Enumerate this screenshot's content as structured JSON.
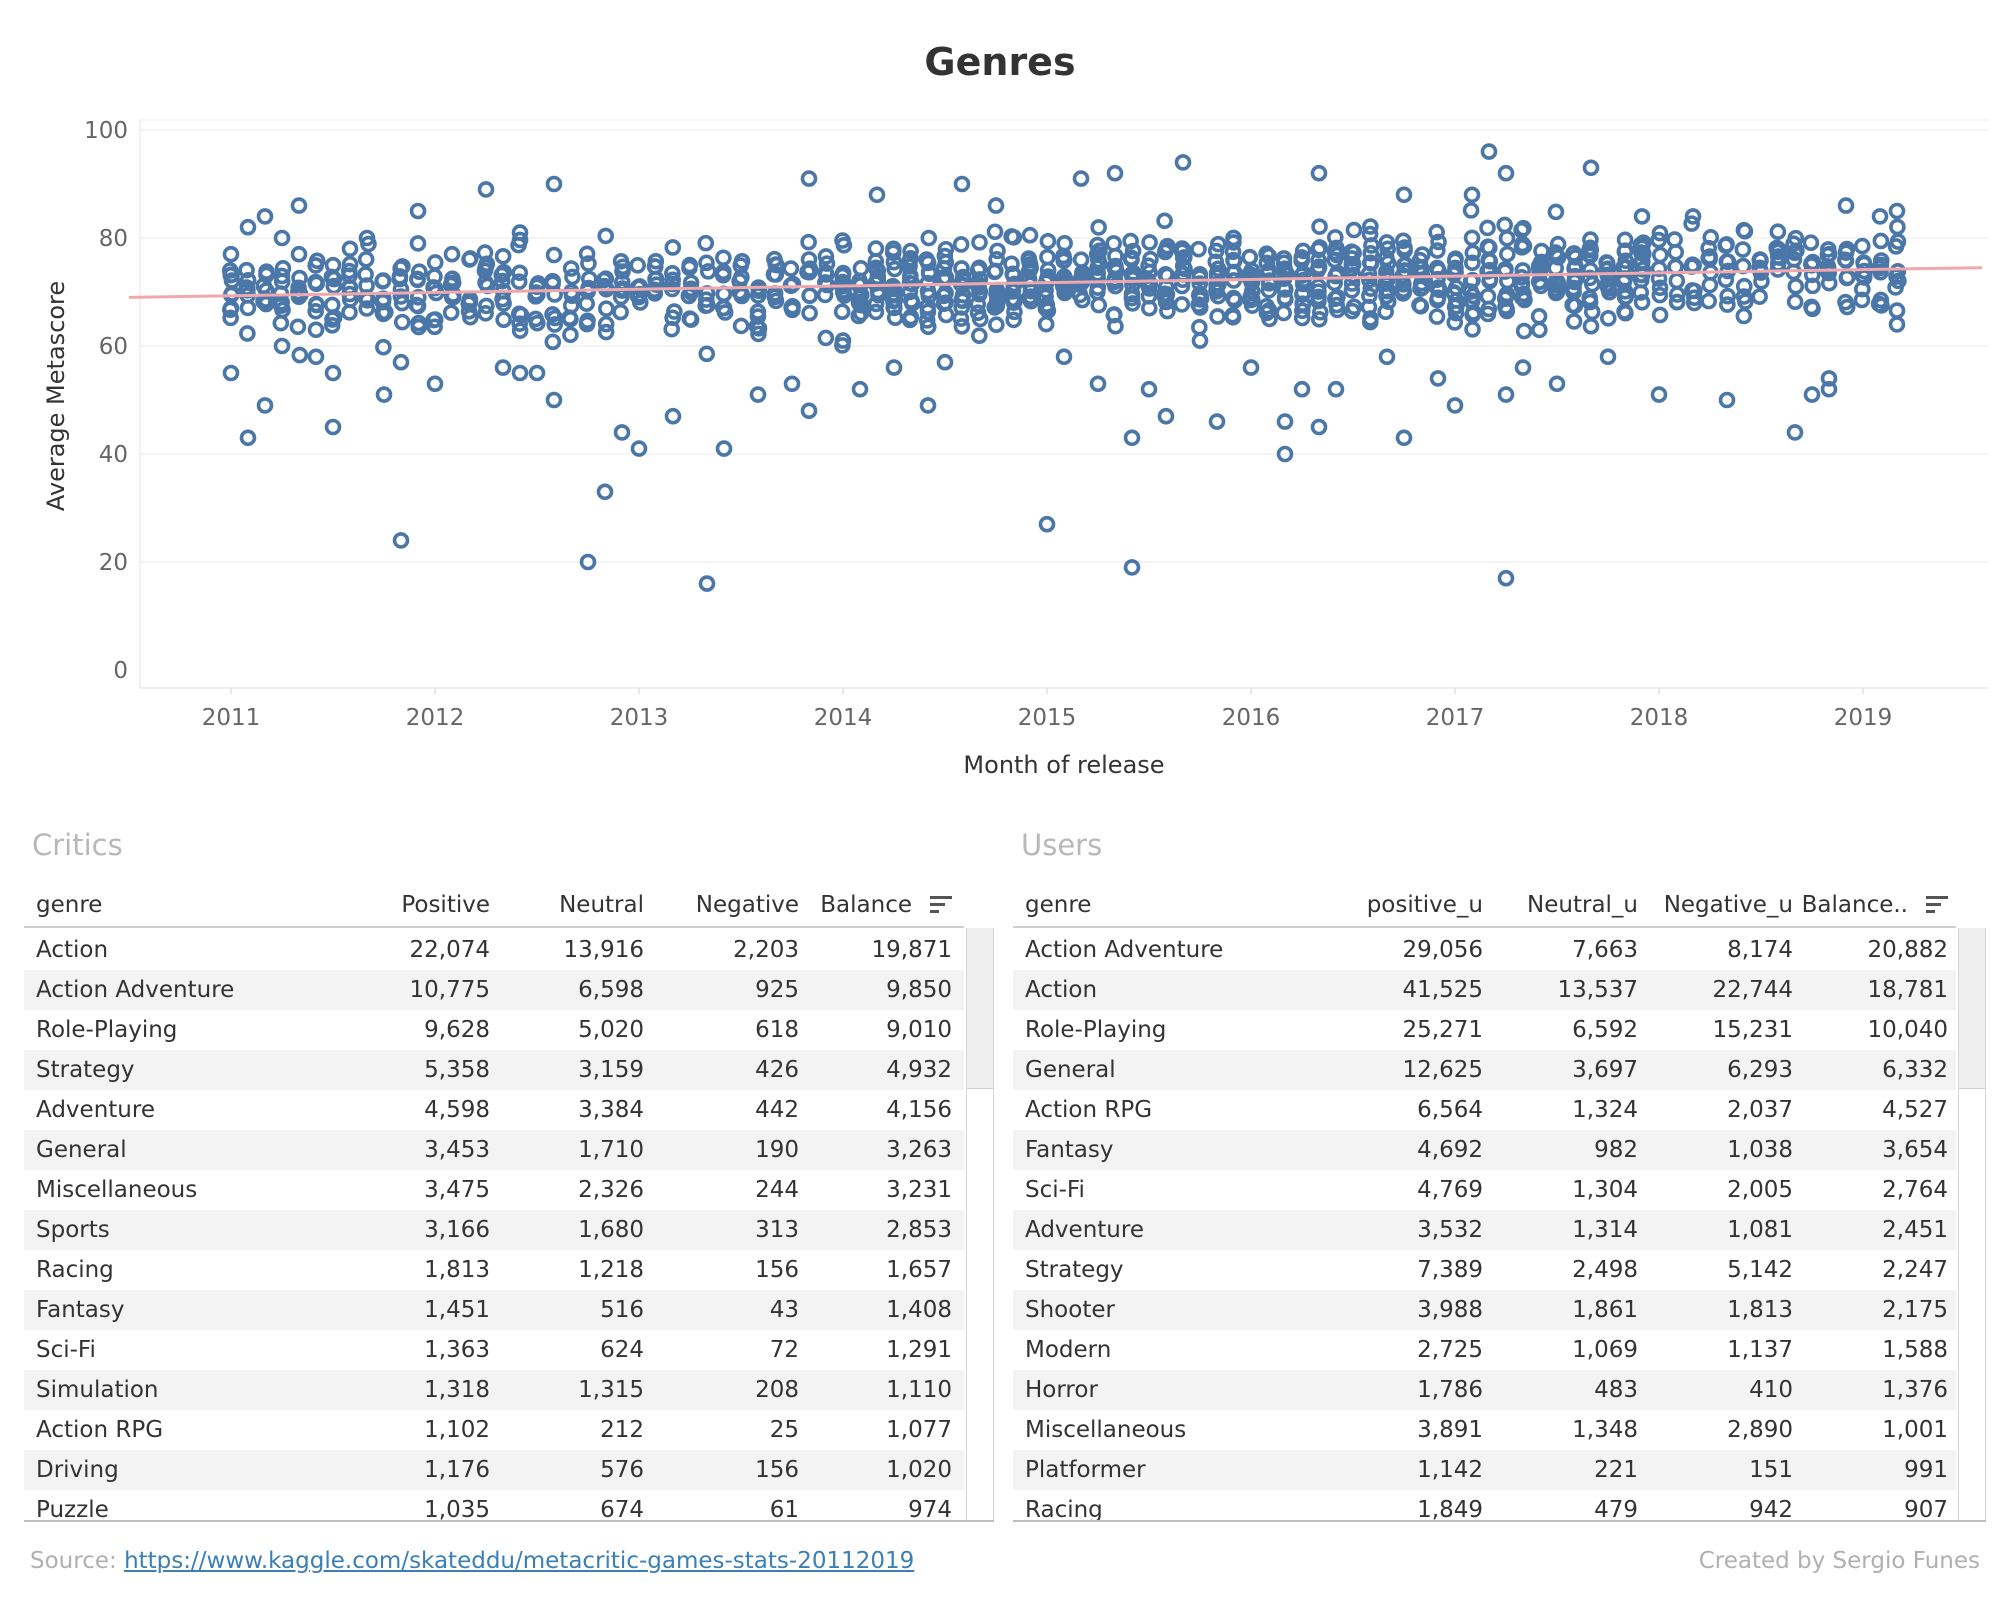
{
  "title": "Genres",
  "chart_data": {
    "type": "scatter",
    "title": "Genres",
    "xlabel": "Month of release",
    "ylabel": "Average Metascore",
    "x_ticks": [
      "2011",
      "2012",
      "2013",
      "2014",
      "2015",
      "2016",
      "2017",
      "2018",
      "2019"
    ],
    "y_ticks": [
      0,
      20,
      40,
      60,
      80,
      100
    ],
    "ylim": [
      0,
      100
    ],
    "xlim": [
      "2010-07",
      "2019-08"
    ],
    "grid": true,
    "marker": "hollow-circle",
    "marker_color": "#4a76a8",
    "trend_line": {
      "start": [
        "2010-07",
        69
      ],
      "end": [
        "2019-08",
        74.5
      ],
      "color": "#f0a8ad"
    },
    "sample_points": [
      [
        "2011-01",
        77
      ],
      [
        "2011-01",
        55
      ],
      [
        "2011-01",
        67
      ],
      [
        "2011-02",
        43
      ],
      [
        "2011-02",
        82
      ],
      [
        "2011-03",
        49
      ],
      [
        "2011-03",
        84
      ],
      [
        "2011-04",
        60
      ],
      [
        "2011-04",
        80
      ],
      [
        "2011-05",
        86
      ],
      [
        "2011-05",
        77
      ],
      [
        "2011-06",
        63
      ],
      [
        "2011-06",
        58
      ],
      [
        "2011-07",
        45
      ],
      [
        "2011-07",
        55
      ],
      [
        "2011-08",
        78
      ],
      [
        "2011-09",
        80
      ],
      [
        "2011-10",
        51
      ],
      [
        "2011-11",
        57
      ],
      [
        "2011-11",
        24
      ],
      [
        "2011-12",
        85
      ],
      [
        "2011-12",
        79
      ],
      [
        "2012-01",
        53
      ],
      [
        "2012-02",
        77
      ],
      [
        "2012-04",
        89
      ],
      [
        "2012-05",
        56
      ],
      [
        "2012-06",
        81
      ],
      [
        "2012-06",
        55
      ],
      [
        "2012-07",
        55
      ],
      [
        "2012-08",
        50
      ],
      [
        "2012-08",
        90
      ],
      [
        "2012-10",
        20
      ],
      [
        "2012-11",
        33
      ],
      [
        "2012-12",
        44
      ],
      [
        "2013-01",
        41
      ],
      [
        "2013-03",
        47
      ],
      [
        "2013-05",
        16
      ],
      [
        "2013-06",
        41
      ],
      [
        "2013-08",
        51
      ],
      [
        "2013-10",
        53
      ],
      [
        "2013-11",
        91
      ],
      [
        "2013-11",
        48
      ],
      [
        "2014-01",
        61
      ],
      [
        "2014-02",
        52
      ],
      [
        "2014-03",
        88
      ],
      [
        "2014-04",
        56
      ],
      [
        "2014-06",
        49
      ],
      [
        "2014-07",
        57
      ],
      [
        "2014-08",
        90
      ],
      [
        "2014-10",
        86
      ],
      [
        "2015-01",
        27
      ],
      [
        "2015-02",
        58
      ],
      [
        "2015-03",
        91
      ],
      [
        "2015-04",
        53
      ],
      [
        "2015-05",
        92
      ],
      [
        "2015-06",
        19
      ],
      [
        "2015-06",
        43
      ],
      [
        "2015-07",
        52
      ],
      [
        "2015-08",
        47
      ],
      [
        "2015-09",
        94
      ],
      [
        "2015-10",
        61
      ],
      [
        "2015-11",
        46
      ],
      [
        "2016-01",
        56
      ],
      [
        "2016-03",
        40
      ],
      [
        "2016-03",
        46
      ],
      [
        "2016-04",
        52
      ],
      [
        "2016-05",
        92
      ],
      [
        "2016-05",
        45
      ],
      [
        "2016-06",
        52
      ],
      [
        "2016-09",
        58
      ],
      [
        "2016-10",
        88
      ],
      [
        "2016-10",
        43
      ],
      [
        "2016-12",
        54
      ],
      [
        "2017-01",
        49
      ],
      [
        "2017-02",
        88
      ],
      [
        "2017-03",
        96
      ],
      [
        "2017-04",
        92
      ],
      [
        "2017-04",
        51
      ],
      [
        "2017-04",
        17
      ],
      [
        "2017-05",
        56
      ],
      [
        "2017-07",
        53
      ],
      [
        "2017-09",
        93
      ],
      [
        "2017-10",
        58
      ],
      [
        "2017-12",
        84
      ],
      [
        "2018-01",
        51
      ],
      [
        "2018-03",
        84
      ],
      [
        "2018-05",
        50
      ],
      [
        "2018-09",
        44
      ],
      [
        "2018-10",
        51
      ],
      [
        "2018-11",
        54
      ],
      [
        "2018-11",
        52
      ],
      [
        "2018-12",
        86
      ],
      [
        "2019-02",
        84
      ],
      [
        "2019-03",
        85
      ],
      [
        "2019-03",
        64
      ]
    ]
  },
  "critics": {
    "title": "Critics",
    "columns": [
      "genre",
      "Positive",
      "Neutral",
      "Negative",
      "Balance"
    ],
    "rows": [
      [
        "Action",
        "22,074",
        "13,916",
        "2,203",
        "19,871"
      ],
      [
        "Action Adventure",
        "10,775",
        "6,598",
        "925",
        "9,850"
      ],
      [
        "Role-Playing",
        "9,628",
        "5,020",
        "618",
        "9,010"
      ],
      [
        "Strategy",
        "5,358",
        "3,159",
        "426",
        "4,932"
      ],
      [
        "Adventure",
        "4,598",
        "3,384",
        "442",
        "4,156"
      ],
      [
        "General",
        "3,453",
        "1,710",
        "190",
        "3,263"
      ],
      [
        "Miscellaneous",
        "3,475",
        "2,326",
        "244",
        "3,231"
      ],
      [
        "Sports",
        "3,166",
        "1,680",
        "313",
        "2,853"
      ],
      [
        "Racing",
        "1,813",
        "1,218",
        "156",
        "1,657"
      ],
      [
        "Fantasy",
        "1,451",
        "516",
        "43",
        "1,408"
      ],
      [
        "Sci-Fi",
        "1,363",
        "624",
        "72",
        "1,291"
      ],
      [
        "Simulation",
        "1,318",
        "1,315",
        "208",
        "1,110"
      ],
      [
        "Action RPG",
        "1,102",
        "212",
        "25",
        "1,077"
      ],
      [
        "Driving",
        "1,176",
        "576",
        "156",
        "1,020"
      ],
      [
        "Puzzle",
        "1,035",
        "674",
        "61",
        "974"
      ]
    ]
  },
  "users": {
    "title": "Users",
    "columns": [
      "genre",
      "positive_u",
      "Neutral_u",
      "Negative_u",
      "Balance.."
    ],
    "rows": [
      [
        "Action Adventure",
        "29,056",
        "7,663",
        "8,174",
        "20,882"
      ],
      [
        "Action",
        "41,525",
        "13,537",
        "22,744",
        "18,781"
      ],
      [
        "Role-Playing",
        "25,271",
        "6,592",
        "15,231",
        "10,040"
      ],
      [
        "General",
        "12,625",
        "3,697",
        "6,293",
        "6,332"
      ],
      [
        "Action RPG",
        "6,564",
        "1,324",
        "2,037",
        "4,527"
      ],
      [
        "Fantasy",
        "4,692",
        "982",
        "1,038",
        "3,654"
      ],
      [
        "Sci-Fi",
        "4,769",
        "1,304",
        "2,005",
        "2,764"
      ],
      [
        "Adventure",
        "3,532",
        "1,314",
        "1,081",
        "2,451"
      ],
      [
        "Strategy",
        "7,389",
        "2,498",
        "5,142",
        "2,247"
      ],
      [
        "Shooter",
        "3,988",
        "1,861",
        "1,813",
        "2,175"
      ],
      [
        "Modern",
        "2,725",
        "1,069",
        "1,137",
        "1,588"
      ],
      [
        "Horror",
        "1,786",
        "483",
        "410",
        "1,376"
      ],
      [
        "Miscellaneous",
        "3,891",
        "1,348",
        "2,890",
        "1,001"
      ],
      [
        "Platformer",
        "1,142",
        "221",
        "151",
        "991"
      ],
      [
        "Racing",
        "1,849",
        "479",
        "942",
        "907"
      ]
    ]
  },
  "footer": {
    "source_label": "Source: ",
    "source_link": "https://www.kaggle.com/skateddu/metacritic-games-stats-20112019",
    "credit": "Created by Sergio Funes"
  },
  "colors": {
    "marker": "#4a76a8",
    "trend": "#f0a8ad",
    "link": "#3b7fb5",
    "muted_text": "#b0b0b0"
  },
  "icons": {
    "sort": "sort-descending-icon"
  }
}
